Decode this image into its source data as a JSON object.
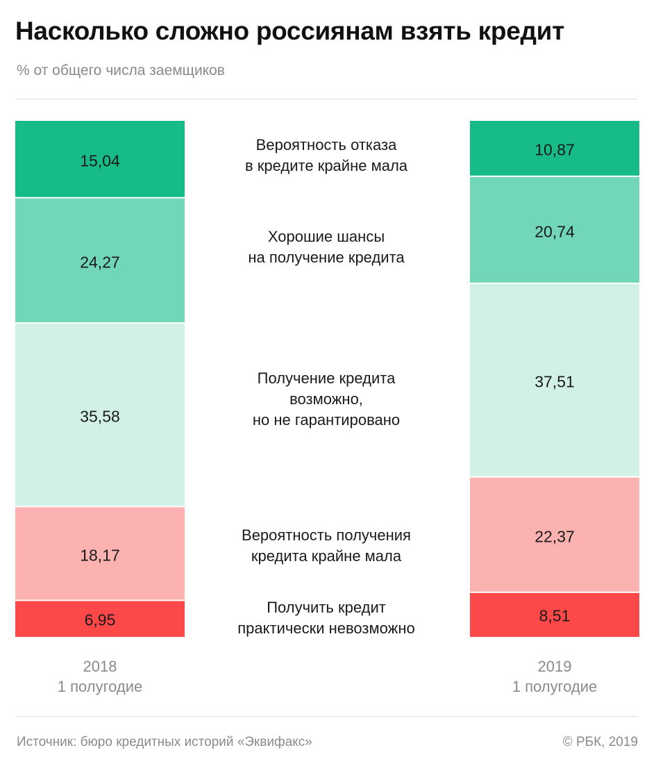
{
  "header": {
    "title": "Насколько сложно россиянам взять кредит",
    "subtitle": "% от общего числа заемщиков"
  },
  "chart_data": {
    "type": "stacked-bar",
    "title": "Насколько сложно россиянам взять кредит",
    "subtitle": "% от общего числа заемщиков",
    "categories": [
      "Вероятность отказа в кредите крайне мала",
      "Хорошие шансы на получение кредита",
      "Получение кредита возможно, но не гарантировано",
      "Вероятность получения кредита крайне мала",
      "Получить кредит практически невозможно"
    ],
    "category_lines": [
      [
        "Вероятность отказа",
        "в кредите крайне мала"
      ],
      [
        "Хорошие шансы",
        "на получение кредита"
      ],
      [
        "Получение кредита",
        "возможно,",
        "но не гарантировано"
      ],
      [
        "Вероятность получения",
        "кредита крайне мала"
      ],
      [
        "Получить кредит",
        "практически невозможно"
      ]
    ],
    "colors": [
      "#16bb87",
      "#72d7b8",
      "#d1f1e7",
      "#fdb2b2",
      "#fc4848"
    ],
    "series": [
      {
        "name": "2018 1 полугодие",
        "year": "2018",
        "period": "1 полугодие",
        "values": [
          15.04,
          24.27,
          35.58,
          18.17,
          6.95
        ],
        "labels": [
          "15,04",
          "24,27",
          "35,58",
          "18,17",
          "6,95"
        ]
      },
      {
        "name": "2019 1 полугодие",
        "year": "2019",
        "period": "1 полугодие",
        "values": [
          10.87,
          20.74,
          37.51,
          22.37,
          8.51
        ],
        "labels": [
          "10,87",
          "20,74",
          "37,51",
          "22,37",
          "8,51"
        ]
      }
    ]
  },
  "footer": {
    "source": "Источник: бюро кредитных историй «Эквифакс»",
    "copyright": "© РБК, 2019"
  }
}
